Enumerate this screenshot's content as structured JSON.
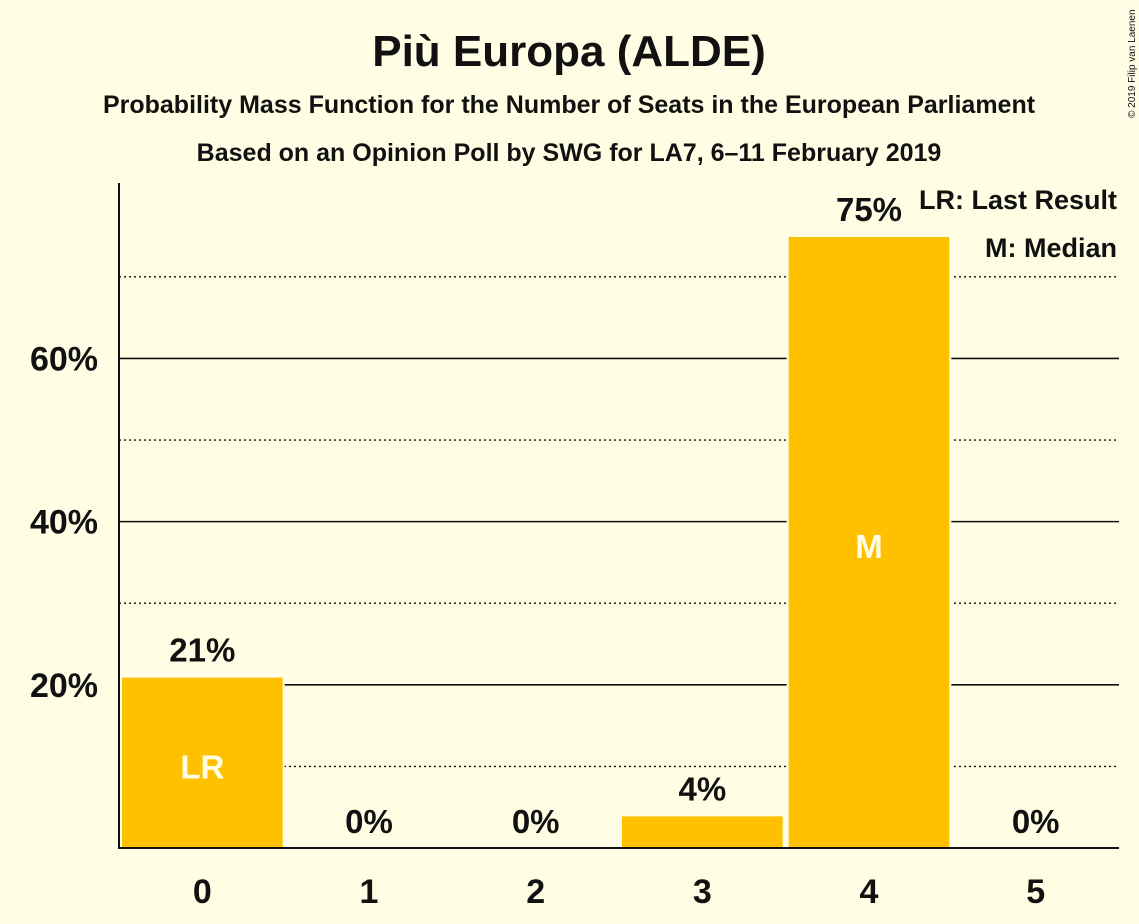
{
  "chart_data": {
    "type": "bar",
    "title": "Più Europa (ALDE)",
    "subtitle": "Probability Mass Function for the Number of Seats in the European Parliament",
    "subtitle2": "Based on an Opinion Poll by SWG for LA7, 6–11 February 2019",
    "copyright": "© 2019 Filip van Laenen",
    "categories": [
      "0",
      "1",
      "2",
      "3",
      "4",
      "5"
    ],
    "values": [
      21,
      0,
      0,
      4,
      75,
      0
    ],
    "value_labels": [
      "21%",
      "0%",
      "0%",
      "4%",
      "75%",
      "0%"
    ],
    "bar_markers": [
      "LR",
      "",
      "",
      "",
      "M",
      ""
    ],
    "legend": [
      "LR: Last Result",
      "M: Median"
    ],
    "yticks": [
      "20%",
      "40%",
      "60%"
    ],
    "ytick_values": [
      20,
      40,
      60
    ],
    "dotted_grid_values": [
      10,
      30,
      50,
      70
    ],
    "ylim": [
      0,
      81.5
    ],
    "legend_position": "top-right",
    "colors": {
      "background": "#FFFEE5",
      "bar": "#FFC000",
      "text": "#111111",
      "marker_text": "#FFFEE5"
    }
  }
}
